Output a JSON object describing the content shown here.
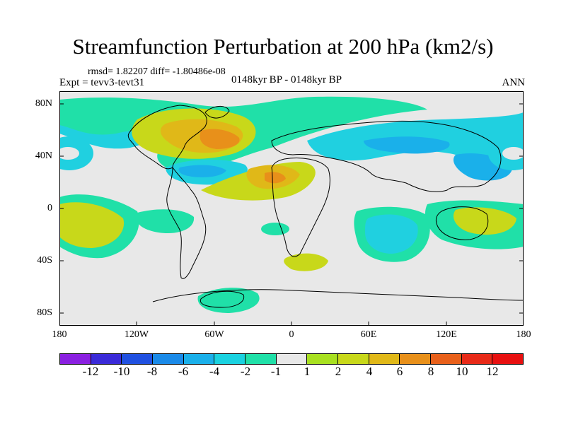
{
  "figure": {
    "title": "Streamfunction Perturbation at 200 hPa (km2/s)",
    "stats": "rmsd= 1.82207 diff= -1.80486e-08",
    "experiment": "Expt = tevv3-tevt31",
    "period": "0148kyr BP - 0148kyr BP",
    "season": "ANN"
  },
  "axes": {
    "lat_labels": [
      "80N",
      "40N",
      "0",
      "40S",
      "80S"
    ],
    "lon_labels": [
      "180",
      "120W",
      "60W",
      "0",
      "60E",
      "120E",
      "180"
    ]
  },
  "colorbar": {
    "labels": [
      "-12",
      "-10",
      "-8",
      "-6",
      "-4",
      "-2",
      "-1",
      "1",
      "2",
      "4",
      "6",
      "8",
      "10",
      "12"
    ],
    "colors": [
      "#8a20e0",
      "#3a2ad8",
      "#2050e0",
      "#1a8ae8",
      "#1ab0ea",
      "#1ad2e0",
      "#20e0a8",
      "#e8e8e8",
      "#a8e020",
      "#c8d81a",
      "#e0b818",
      "#e8901a",
      "#e8601a",
      "#e82a18",
      "#e81010"
    ]
  },
  "map_fill": {
    "land_background": "#e8e8e8",
    "negative_color": "#20d0e0",
    "positive_color": "#e0b818"
  }
}
